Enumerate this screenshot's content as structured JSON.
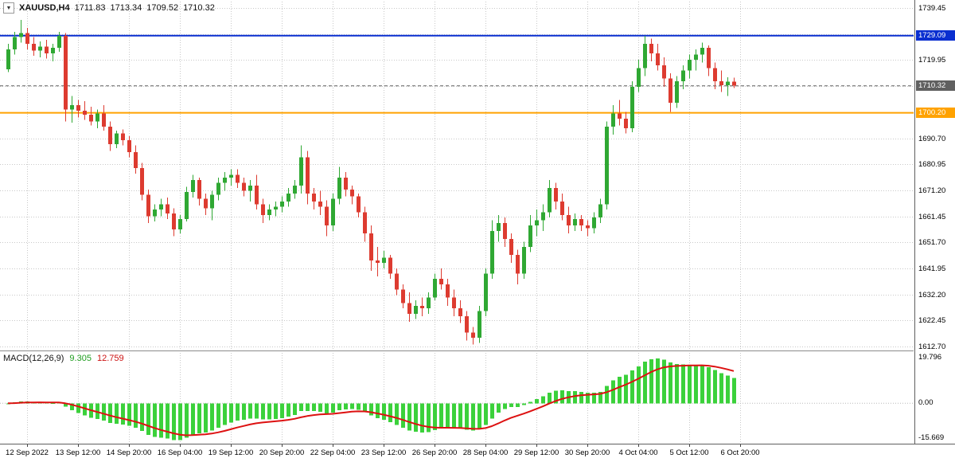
{
  "header": {
    "dropdown_icon": "▼",
    "symbol_period": "XAUUSD,H4",
    "open": "1711.83",
    "high": "1713.34",
    "low": "1709.52",
    "close": "1710.32"
  },
  "price_axis": {
    "labels": [
      "1739.45",
      "1729.70",
      "1719.95",
      "1710.20",
      "1700.45",
      "1690.70",
      "1680.95",
      "1671.20",
      "1661.45",
      "1651.70",
      "1641.95",
      "1632.20",
      "1622.45",
      "1612.70"
    ]
  },
  "levels": [
    {
      "name": "resistance",
      "price": 1729.09,
      "label": "1729.09",
      "color": "#0a2fd0",
      "dash": false,
      "width": 2
    },
    {
      "name": "bid",
      "price": 1710.32,
      "label": "1710.32",
      "color": "#606060",
      "dash": true,
      "width": 1
    },
    {
      "name": "support",
      "price": 1700.2,
      "label": "1700.20",
      "color": "#ffa200",
      "dash": false,
      "width": 2
    }
  ],
  "time_axis": {
    "labels": [
      "12 Sep 2022",
      "13 Sep 12:00",
      "14 Sep 20:00",
      "16 Sep 04:00",
      "19 Sep 12:00",
      "20 Sep 20:00",
      "22 Sep 04:00",
      "23 Sep 12:00",
      "26 Sep 20:00",
      "28 Sep 04:00",
      "29 Sep 12:00",
      "30 Sep 20:00",
      "4 Oct 04:00",
      "5 Oct 12:00",
      "6 Oct 20:00"
    ]
  },
  "macd": {
    "label": "MACD(12,26,9)",
    "value": "9.305",
    "signal": "12.759",
    "axis": {
      "max": "19.796",
      "zero": "0.00",
      "min": "-15.669"
    }
  },
  "chart_data": {
    "type": "candlestick",
    "symbol": "XAUUSD",
    "timeframe": "H4",
    "title": "XAUUSD,H4 1711.83 1713.34 1709.52 1710.32",
    "x_range": [
      "12 Sep 2022",
      "6 Oct 2022 20:00"
    ],
    "y_ticks": [
      1739.45,
      1729.7,
      1719.95,
      1710.2,
      1700.45,
      1690.7,
      1680.95,
      1671.2,
      1661.45,
      1651.7,
      1641.95,
      1632.2,
      1622.45,
      1612.7
    ],
    "horizontal_lines": [
      {
        "value": 1729.09,
        "color": "#0a2fd0",
        "role": "resistance"
      },
      {
        "value": 1710.32,
        "color": "#606060",
        "role": "current-bid"
      },
      {
        "value": 1700.2,
        "color": "#ffa200",
        "role": "support"
      }
    ],
    "indicator": {
      "type": "MACD",
      "fast": 12,
      "slow": 26,
      "signal": 9,
      "current_macd": 9.305,
      "current_signal": 12.759,
      "scale_max": 19.796,
      "scale_min": -15.669
    },
    "colors": {
      "bull": "#2fa833",
      "bear": "#dd3b30",
      "macd_hist": "#3bd13b",
      "macd_signal": "#dd1111",
      "grid": "#c8c8c8"
    },
    "candles": [
      [
        1716.5,
        1726,
        1715.5,
        1724
      ],
      [
        1724,
        1730.5,
        1722,
        1728.5
      ],
      [
        1728.5,
        1735,
        1726.5,
        1730
      ],
      [
        1730,
        1732,
        1724,
        1726
      ],
      [
        1726,
        1728.5,
        1721.5,
        1723.5
      ],
      [
        1723.5,
        1727,
        1721,
        1725
      ],
      [
        1725,
        1727.5,
        1720.5,
        1722.5
      ],
      [
        1722.5,
        1726,
        1719.5,
        1724.5
      ],
      [
        1724.5,
        1730.5,
        1723,
        1729
      ],
      [
        1729,
        1730,
        1697,
        1701.5
      ],
      [
        1701.5,
        1706.5,
        1696.5,
        1703
      ],
      [
        1703,
        1705,
        1698.5,
        1701
      ],
      [
        1701,
        1704.5,
        1697.5,
        1699.5
      ],
      [
        1699.5,
        1702.5,
        1695.5,
        1697
      ],
      [
        1697,
        1701.5,
        1694.5,
        1700
      ],
      [
        1700,
        1703,
        1693.5,
        1695
      ],
      [
        1695,
        1697,
        1686,
        1688.5
      ],
      [
        1688.5,
        1693.5,
        1687,
        1692.5
      ],
      [
        1692.5,
        1694,
        1688,
        1690
      ],
      [
        1690,
        1691.5,
        1683.5,
        1685.5
      ],
      [
        1685.5,
        1688,
        1677.5,
        1679.5
      ],
      [
        1679.5,
        1681.5,
        1667.5,
        1669.5
      ],
      [
        1669.5,
        1671.5,
        1659,
        1661.5
      ],
      [
        1661.5,
        1666,
        1659.5,
        1664
      ],
      [
        1664,
        1668,
        1661.5,
        1666
      ],
      [
        1666,
        1668.5,
        1660.5,
        1662.5
      ],
      [
        1662.5,
        1664.5,
        1654,
        1656.5
      ],
      [
        1656.5,
        1662,
        1655,
        1660.5
      ],
      [
        1660.5,
        1672.5,
        1659.5,
        1670.5
      ],
      [
        1670.5,
        1677,
        1668.5,
        1675
      ],
      [
        1675,
        1676,
        1665.5,
        1668
      ],
      [
        1668,
        1670,
        1662,
        1664.5
      ],
      [
        1664.5,
        1671,
        1660,
        1669.5
      ],
      [
        1669.5,
        1676,
        1667.5,
        1674
      ],
      [
        1674,
        1678,
        1671,
        1676
      ],
      [
        1676,
        1679,
        1673,
        1677
      ],
      [
        1677,
        1679,
        1672,
        1674
      ],
      [
        1674,
        1676,
        1669,
        1671
      ],
      [
        1671,
        1675,
        1667,
        1673
      ],
      [
        1673,
        1677,
        1664,
        1666
      ],
      [
        1666,
        1668,
        1659,
        1662
      ],
      [
        1662,
        1666,
        1660,
        1664
      ],
      [
        1664,
        1667,
        1661.5,
        1665
      ],
      [
        1665,
        1669,
        1663,
        1667
      ],
      [
        1667,
        1672,
        1665,
        1670
      ],
      [
        1670,
        1675,
        1668,
        1673
      ],
      [
        1673,
        1688,
        1670,
        1683.5
      ],
      [
        1683.5,
        1686,
        1666,
        1670
      ],
      [
        1670,
        1672,
        1664,
        1667
      ],
      [
        1667,
        1671,
        1662,
        1665
      ],
      [
        1665,
        1667.5,
        1654,
        1658
      ],
      [
        1658,
        1670,
        1656,
        1668
      ],
      [
        1668,
        1680,
        1666,
        1676
      ],
      [
        1676,
        1678,
        1669,
        1671.5
      ],
      [
        1671.5,
        1673,
        1666,
        1669
      ],
      [
        1669,
        1670,
        1661,
        1663
      ],
      [
        1663,
        1665,
        1652,
        1655
      ],
      [
        1655,
        1658,
        1641,
        1645
      ],
      [
        1645,
        1650,
        1639,
        1644
      ],
      [
        1644,
        1648.5,
        1642,
        1646
      ],
      [
        1646,
        1647,
        1638,
        1640
      ],
      [
        1640,
        1642,
        1632,
        1634
      ],
      [
        1634,
        1636,
        1627,
        1629
      ],
      [
        1629,
        1633,
        1622,
        1625
      ],
      [
        1625,
        1630,
        1623,
        1628
      ],
      [
        1628,
        1631,
        1624,
        1627
      ],
      [
        1627,
        1633,
        1625,
        1631
      ],
      [
        1631,
        1640,
        1630,
        1638
      ],
      [
        1638,
        1642,
        1634,
        1636
      ],
      [
        1636,
        1638,
        1628,
        1631
      ],
      [
        1631,
        1634,
        1624,
        1627
      ],
      [
        1627,
        1630,
        1621.5,
        1624
      ],
      [
        1624,
        1626,
        1615,
        1618
      ],
      [
        1618,
        1620,
        1613.5,
        1616
      ],
      [
        1616,
        1628,
        1614,
        1626
      ],
      [
        1626,
        1642,
        1624,
        1640
      ],
      [
        1640,
        1660,
        1638,
        1656
      ],
      [
        1656,
        1662,
        1652,
        1659
      ],
      [
        1659,
        1661,
        1650,
        1653
      ],
      [
        1653,
        1655,
        1644,
        1647
      ],
      [
        1647,
        1649,
        1636,
        1640
      ],
      [
        1640,
        1652,
        1638,
        1650
      ],
      [
        1650,
        1662,
        1648,
        1658
      ],
      [
        1658,
        1664,
        1654,
        1660
      ],
      [
        1660,
        1666,
        1656,
        1663
      ],
      [
        1663,
        1675,
        1661,
        1672
      ],
      [
        1672,
        1674,
        1664,
        1667
      ],
      [
        1667,
        1670,
        1660,
        1662
      ],
      [
        1662,
        1665,
        1655,
        1658
      ],
      [
        1658,
        1662.5,
        1656,
        1660.5
      ],
      [
        1660.5,
        1662,
        1656,
        1658
      ],
      [
        1658,
        1660,
        1654,
        1657
      ],
      [
        1657,
        1663,
        1655,
        1661
      ],
      [
        1661,
        1668,
        1659,
        1666
      ],
      [
        1666,
        1697,
        1664,
        1695
      ],
      [
        1695,
        1703,
        1692,
        1700
      ],
      [
        1700,
        1705,
        1695.5,
        1698
      ],
      [
        1698,
        1700.5,
        1692.5,
        1694.5
      ],
      [
        1694.5,
        1712,
        1693,
        1710
      ],
      [
        1710,
        1720,
        1708,
        1717
      ],
      [
        1717,
        1729,
        1714,
        1726
      ],
      [
        1726,
        1728,
        1719.5,
        1722.5
      ],
      [
        1722.5,
        1726,
        1716,
        1718
      ],
      [
        1718,
        1721,
        1710,
        1713
      ],
      [
        1713,
        1715,
        1700.5,
        1704
      ],
      [
        1704,
        1714,
        1702,
        1712
      ],
      [
        1712,
        1718,
        1709,
        1716
      ],
      [
        1716,
        1722,
        1713,
        1720
      ],
      [
        1720,
        1724,
        1716,
        1722
      ],
      [
        1722,
        1726.5,
        1719,
        1724.5
      ],
      [
        1724.5,
        1725.5,
        1714,
        1717
      ],
      [
        1717,
        1719,
        1709,
        1712
      ],
      [
        1712,
        1716,
        1708,
        1710.5
      ],
      [
        1710.5,
        1713.5,
        1706.5,
        1711.8
      ],
      [
        1711.83,
        1713.34,
        1709.52,
        1710.32
      ]
    ]
  }
}
